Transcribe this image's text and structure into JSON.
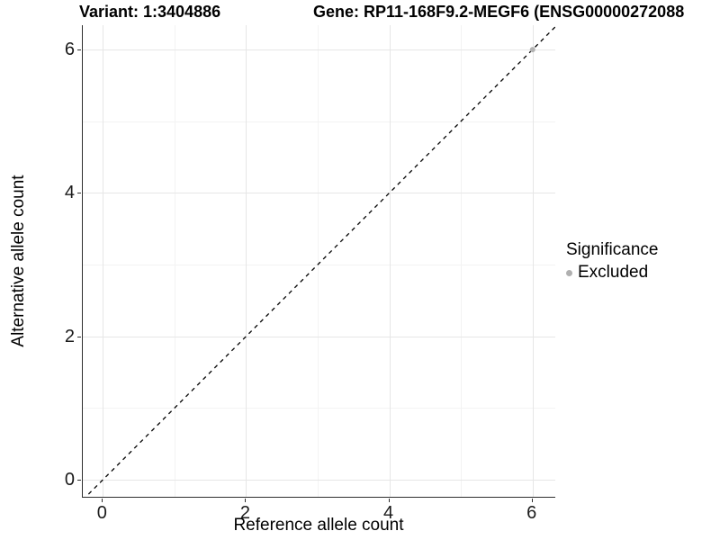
{
  "titles": {
    "variant": "Variant: 1:3404886",
    "gene": "Gene: RP11-168F9.2-MEGF6 (ENSG00000272088"
  },
  "chart_data": {
    "type": "scatter",
    "title_left": "Variant: 1:3404886",
    "title_right": "Gene: RP11-168F9.2-MEGF6 (ENSG00000272088",
    "xlabel": "Reference allele count",
    "ylabel": "Alternative allele count",
    "xlim": [
      -0.28,
      6.33
    ],
    "ylim": [
      -0.25,
      6.34
    ],
    "x_major_ticks": [
      0,
      2,
      4,
      6
    ],
    "x_minor_ticks": [
      1,
      3,
      5
    ],
    "y_major_ticks": [
      0,
      2,
      4,
      6
    ],
    "y_minor_ticks": [
      1,
      3,
      5
    ],
    "grid": true,
    "legend_position": "right",
    "reference_line": {
      "type": "identity y=x",
      "style": "dashed",
      "color": "#000000"
    },
    "series": [
      {
        "name": "Excluded",
        "color": "#b3b3b3",
        "marker": "circle",
        "points": [
          {
            "x": 6,
            "y": 6
          }
        ]
      }
    ],
    "legend": {
      "title": "Significance",
      "items": [
        {
          "label": "Excluded",
          "color": "#b0b0b0"
        }
      ]
    },
    "colors": {
      "axis_line": "#2f2f2f",
      "grid_major": "#e6e6e6",
      "grid_minor": "#f3f3f3",
      "point": "#b3b3b3"
    }
  }
}
